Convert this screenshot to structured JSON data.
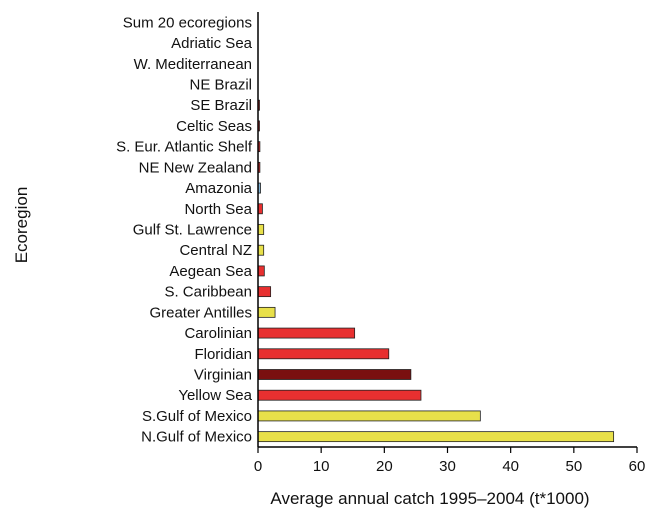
{
  "chart_data": {
    "type": "bar",
    "orientation": "horizontal",
    "xlabel": "Average annual catch 1995–2004 (t*1000)",
    "ylabel": "Ecoregion",
    "xlim": [
      0,
      60
    ],
    "xticks": [
      "0",
      "10",
      "20",
      "30",
      "40",
      "50",
      "60"
    ],
    "grid": false,
    "categories": [
      "Sum 20 ecoregions",
      "Adriatic Sea",
      "W. Mediterranean",
      "NE Brazil",
      "SE Brazil",
      "Celtic Seas",
      "S. Eur. Atlantic Shelf",
      "NE New Zealand",
      "Amazonia",
      "North Sea",
      "Gulf St. Lawrence",
      "Central NZ",
      "Aegean Sea",
      "S. Caribbean",
      "Greater Antilles",
      "Carolinian",
      "Floridian",
      "Virginian",
      "Yellow Sea",
      "S.Gulf of Mexico",
      "N.Gulf of Mexico"
    ],
    "values": [
      0,
      0,
      0,
      0,
      0.2,
      0.2,
      0.3,
      0.3,
      0.4,
      0.7,
      0.9,
      0.9,
      1.0,
      2.0,
      2.7,
      15.3,
      20.7,
      24.2,
      25.8,
      35.2,
      56.3
    ],
    "colors": [
      "#e8e04a",
      "#e83030",
      "#e83030",
      "#e8e04a",
      "#e83030",
      "#e83030",
      "#e83030",
      "#e83030",
      "#7fb3d5",
      "#e83030",
      "#e8e04a",
      "#e8e04a",
      "#e83030",
      "#e83030",
      "#e8e04a",
      "#e83030",
      "#e83030",
      "#7a1010",
      "#e83030",
      "#e8e04a",
      "#e8e04a"
    ]
  }
}
